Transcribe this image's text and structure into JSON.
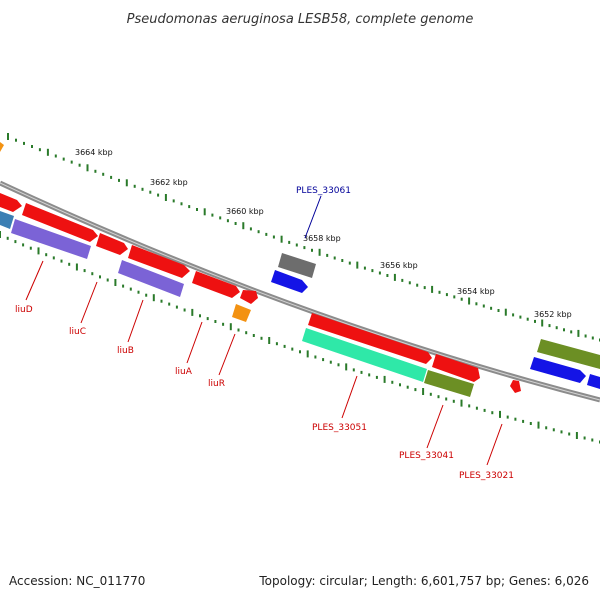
{
  "title": "Pseudomonas aeruginosa LESB58, complete genome",
  "footer": {
    "accession": "Accession: NC_011770",
    "topology": "Topology: circular; Length: 6,601,757 bp; Genes: 6,026"
  },
  "colors": {
    "backbone": "#8c8c8c",
    "tick": "#2a7a2a",
    "red_gene": "#ee1111",
    "purple_gene": "#7b63d6",
    "blue_gene": "#1414e6",
    "gray_gene": "#6d6d6d",
    "orange_gene": "#f39212",
    "green_gene": "#6c8f24",
    "teal_gene": "#2fe8a8",
    "steelblue_gene": "#3c7fb4",
    "label_red": "#cc0000",
    "label_blue": "#000099"
  },
  "kbp_labels": [
    "3664 kbp",
    "3662 kbp",
    "3660 kbp",
    "3658 kbp",
    "3656 kbp",
    "3654 kbp",
    "3652 kbp"
  ],
  "gene_labels": [
    {
      "name": "liuD",
      "color": "red"
    },
    {
      "name": "liuC",
      "color": "red"
    },
    {
      "name": "liuB",
      "color": "red"
    },
    {
      "name": "liuA",
      "color": "red"
    },
    {
      "name": "liuR",
      "color": "red"
    },
    {
      "name": "PLES_33051",
      "color": "red"
    },
    {
      "name": "PLES_33041",
      "color": "red"
    },
    {
      "name": "PLES_33021",
      "color": "red"
    },
    {
      "name": "PLES_33061",
      "color": "blue"
    }
  ],
  "genes": [
    {
      "name": "steelblue-left",
      "color": "steelblue"
    },
    {
      "name": "red-top-left",
      "color": "red"
    },
    {
      "name": "liuD-gene",
      "color": "red"
    },
    {
      "name": "liuD-purple",
      "color": "purple"
    },
    {
      "name": "liuC-gene",
      "color": "red"
    },
    {
      "name": "liuB-gene",
      "color": "red"
    },
    {
      "name": "liuB-purple",
      "color": "purple"
    },
    {
      "name": "liuA-gene",
      "color": "red"
    },
    {
      "name": "small-red-gene",
      "color": "red"
    },
    {
      "name": "liuR-gene",
      "color": "orange"
    },
    {
      "name": "PLES_33061-gene",
      "color": "gray"
    },
    {
      "name": "blue-gene-mid",
      "color": "blue"
    },
    {
      "name": "PLES_33051-red",
      "color": "red"
    },
    {
      "name": "PLES_33051-teal",
      "color": "teal"
    },
    {
      "name": "red-gene-right",
      "color": "red"
    },
    {
      "name": "PLES_33041-gene",
      "color": "green"
    },
    {
      "name": "PLES_33021-gene",
      "color": "red"
    },
    {
      "name": "green-gene-far",
      "color": "green"
    },
    {
      "name": "blue-gene-far",
      "color": "blue"
    },
    {
      "name": "edge-gene-orange",
      "color": "orange"
    }
  ]
}
